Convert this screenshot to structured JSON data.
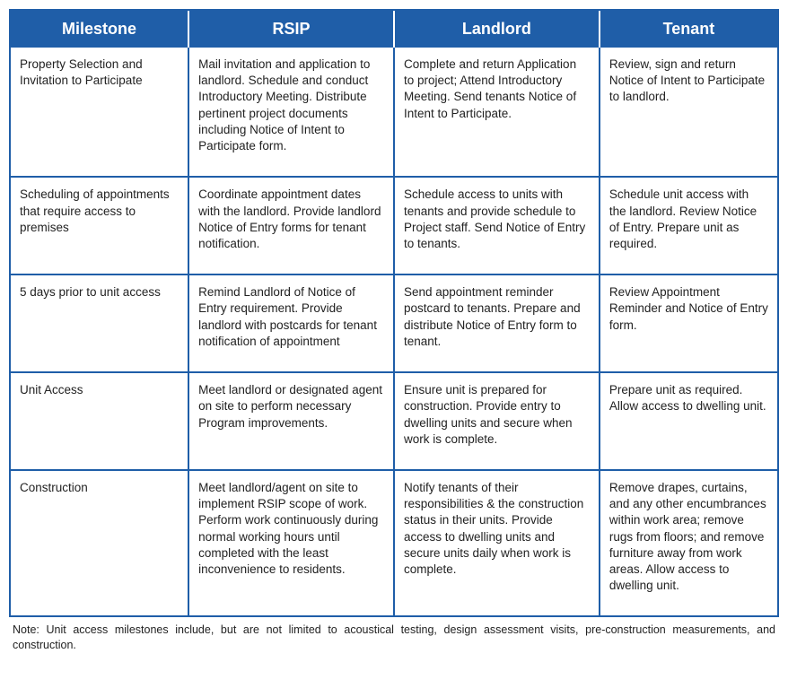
{
  "table": {
    "header_bg": "#1f5ea8",
    "header_fg": "#ffffff",
    "border_color": "#1f5ea8",
    "columns": [
      {
        "key": "milestone",
        "label": "Milestone"
      },
      {
        "key": "rsip",
        "label": "RSIP"
      },
      {
        "key": "landlord",
        "label": "Landlord"
      },
      {
        "key": "tenant",
        "label": "Tenant"
      }
    ],
    "rows": [
      {
        "milestone": "Property Selection and Invitation to Participate",
        "rsip": "Mail invitation and application to landlord. Schedule and conduct Introductory Meeting. Distribute pertinent project documents including Notice of Intent to Participate form.",
        "landlord": "Complete and return Application to project; Attend Introductory Meeting.  Send tenants Notice of Intent to Participate.",
        "tenant": "Review, sign and return Notice of Intent to Participate to landlord."
      },
      {
        "milestone": "Scheduling of appointments that require access to premises",
        "rsip": "Coordinate appointment dates  with the landlord. Provide landlord Notice of Entry forms for tenant notification.",
        "landlord": "Schedule access to units with tenants and provide schedule to Project staff. Send Notice of Entry to tenants.",
        "tenant": "Schedule unit access with the landlord. Review Notice of Entry. Prepare unit as required."
      },
      {
        "milestone": "5 days prior to unit access",
        "rsip": "Remind Landlord of Notice of Entry requirement. Provide landlord with postcards for tenant notification of appointment",
        "landlord": "Send appointment reminder postcard to tenants. Prepare  and distribute Notice of Entry form to tenant.",
        "tenant": "Review Appointment Reminder and Notice of Entry form."
      },
      {
        "milestone": "Unit Access",
        "rsip": "Meet landlord or designated agent on site to perform necessary Program improvements.",
        "landlord": "Ensure unit is prepared for construction. Provide  entry to  dwelling units  and secure  when work is complete.",
        "tenant": "Prepare unit as required. Allow access to dwelling unit."
      },
      {
        "milestone": "Construction",
        "rsip": "Meet landlord/agent on site to implement RSIP scope of work. Perform work continuously during normal working hours until completed with the least inconvenience to residents.",
        "landlord": "Notify tenants of their responsibilities  & the construction status in their units. Provide access to dwelling units and secure units daily when work is complete.",
        "tenant": "Remove  drapes, curtains, and any other encumbrances within work area; remove rugs from floors; and remove furniture away from work areas. Allow access to dwelling unit."
      }
    ]
  },
  "note": "Note: Unit access milestones include, but are not limited to acoustical testing, design assessment visits, pre-construction measurements, and construction."
}
